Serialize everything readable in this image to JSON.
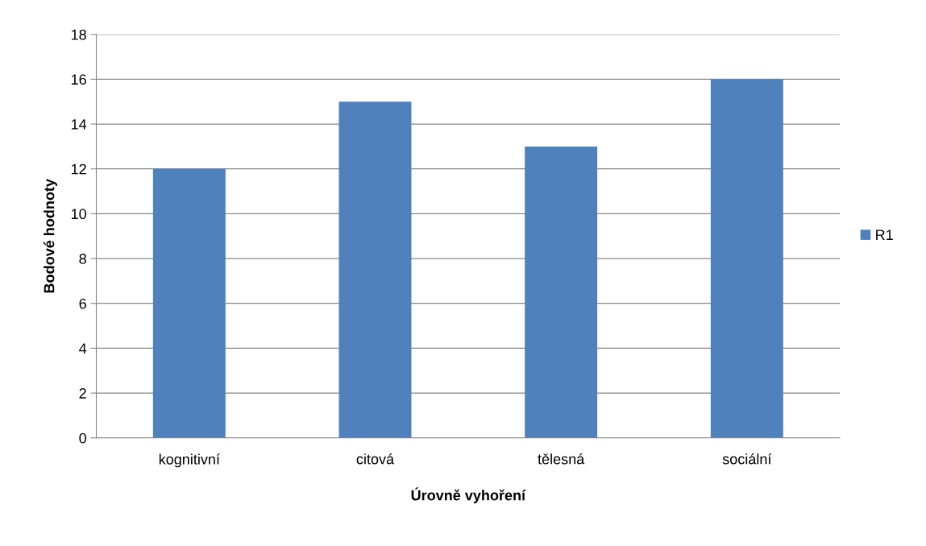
{
  "chart_data": {
    "type": "bar",
    "xlabel": "Úrovně vyhoření",
    "ylabel": "Bodové hodnoty",
    "categories": [
      "kognitivní",
      "citová",
      "tělesná",
      "sociální"
    ],
    "series": [
      {
        "name": "R1",
        "color": "#4f81bd",
        "values": [
          12,
          15,
          13,
          16
        ]
      }
    ],
    "ylim": [
      0,
      18
    ],
    "yticks": [
      0,
      2,
      4,
      6,
      8,
      10,
      12,
      14,
      16,
      18
    ],
    "grid": "y",
    "legend": "right"
  }
}
